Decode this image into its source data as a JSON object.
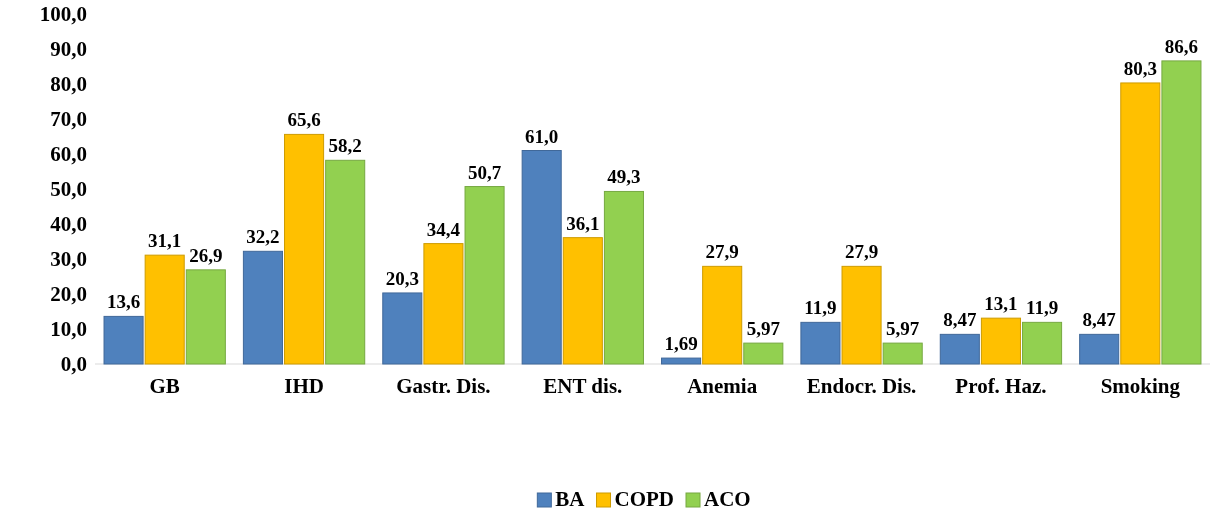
{
  "chart_data": {
    "type": "bar",
    "categories": [
      "GB",
      "IHD",
      "Gastr. Dis.",
      "ENT dis.",
      "Anemia",
      "Endocr. Dis.",
      "Prof. Haz.",
      "Smoking"
    ],
    "series": [
      {
        "name": "BA",
        "color": "#4f81bd",
        "values": [
          13.6,
          32.2,
          20.3,
          61.0,
          1.69,
          11.9,
          8.47,
          8.47
        ],
        "value_labels": [
          "13,6",
          "32,2",
          "20,3",
          "61,0",
          "1,69",
          "11,9",
          "8,47",
          "8,47"
        ]
      },
      {
        "name": "COPD",
        "color": "#ffc000",
        "values": [
          31.1,
          65.6,
          34.4,
          36.1,
          27.9,
          27.9,
          13.1,
          80.3
        ],
        "value_labels": [
          "31,1",
          "65,6",
          "34,4",
          "36,1",
          "27,9",
          "27,9",
          "13,1",
          "80,3"
        ]
      },
      {
        "name": "ACO",
        "color": "#92d050",
        "values": [
          26.9,
          58.2,
          50.7,
          49.3,
          5.97,
          5.97,
          11.9,
          86.6
        ],
        "value_labels": [
          "26,9",
          "58,2",
          "50,7",
          "49,3",
          "5,97",
          "5,97",
          "11,9",
          "86,6"
        ]
      }
    ],
    "ylim": [
      0,
      100
    ],
    "yticks": [
      {
        "value": 0,
        "label": "0,0"
      },
      {
        "value": 10,
        "label": "10,0"
      },
      {
        "value": 20,
        "label": "20,0"
      },
      {
        "value": 30,
        "label": "30,0"
      },
      {
        "value": 40,
        "label": "40,0"
      },
      {
        "value": 50,
        "label": "50,0"
      },
      {
        "value": 60,
        "label": "60,0"
      },
      {
        "value": 70,
        "label": "70,0"
      },
      {
        "value": 80,
        "label": "80,0"
      },
      {
        "value": 90,
        "label": "90,0"
      },
      {
        "value": 100,
        "label": "100,0"
      }
    ],
    "legend": "bottom"
  }
}
